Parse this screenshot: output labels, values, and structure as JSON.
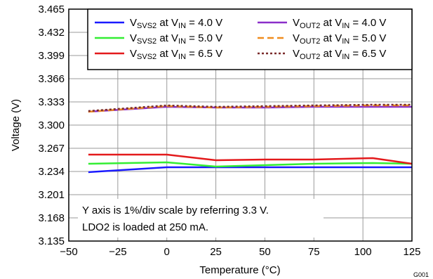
{
  "chart_data": {
    "type": "line",
    "xlabel": "Temperature (°C)",
    "ylabel": "Voltage (V)",
    "xlim": [
      -50,
      125
    ],
    "ylim": [
      3.135,
      3.465
    ],
    "x_ticks": [
      -50,
      -25,
      0,
      25,
      50,
      75,
      100,
      125
    ],
    "x_tick_labels": [
      "−50",
      "−25",
      "0",
      "25",
      "50",
      "75",
      "100",
      "125"
    ],
    "y_ticks": [
      3.135,
      3.168,
      3.201,
      3.234,
      3.267,
      3.3,
      3.333,
      3.366,
      3.399,
      3.432,
      3.465
    ],
    "y_tick_labels": [
      "3.135",
      "3.168",
      "3.201",
      "3.234",
      "3.267",
      "3.300",
      "3.333",
      "3.366",
      "3.399",
      "3.432",
      "3.465"
    ],
    "grid": true,
    "legend_position": "top-right",
    "annotation_lines": [
      "Y axis is 1%/div scale by referring 3.3 V.",
      "LDO2 is loaded at 250 mA."
    ],
    "figure_id": "G001",
    "series": [
      {
        "name_main": "V",
        "name_sub": "SVS2",
        "name_mid": " at V",
        "name_sub2": "IN",
        "name_tail": " = 4.0 V",
        "color": "#1a1aff",
        "dash": "solid",
        "x": [
          -40,
          0,
          25,
          50,
          75,
          105,
          125
        ],
        "values": [
          3.233,
          3.24,
          3.24,
          3.24,
          3.24,
          3.24,
          3.24
        ]
      },
      {
        "name_main": "V",
        "name_sub": "SVS2",
        "name_mid": " at V",
        "name_sub2": "IN",
        "name_tail": " = 5.0 V",
        "color": "#33ee33",
        "dash": "solid",
        "x": [
          -40,
          0,
          25,
          50,
          75,
          105,
          125
        ],
        "values": [
          3.245,
          3.247,
          3.241,
          3.243,
          3.245,
          3.246,
          3.245
        ]
      },
      {
        "name_main": "V",
        "name_sub": "SVS2",
        "name_mid": " at V",
        "name_sub2": "IN",
        "name_tail": " = 6.5 V",
        "color": "#e31a1c",
        "dash": "solid",
        "x": [
          -40,
          0,
          25,
          50,
          75,
          105,
          125
        ],
        "values": [
          3.258,
          3.258,
          3.25,
          3.251,
          3.251,
          3.253,
          3.245
        ]
      },
      {
        "name_main": "V",
        "name_sub": "OUT2",
        "name_mid": " at V",
        "name_sub2": "IN",
        "name_tail": " = 4.0 V",
        "color": "#8b2fc9",
        "dash": "solid",
        "x": [
          -40,
          0,
          25,
          50,
          75,
          105,
          125
        ],
        "values": [
          3.319,
          3.326,
          3.325,
          3.325,
          3.326,
          3.326,
          3.326
        ]
      },
      {
        "name_main": "V",
        "name_sub": "OUT2",
        "name_mid": " at V",
        "name_sub2": "IN",
        "name_tail": " = 5.0 V",
        "color": "#f08c1e",
        "dash": "dashed",
        "x": [
          -40,
          0,
          25,
          50,
          75,
          105,
          125
        ],
        "values": [
          3.319,
          3.327,
          3.325,
          3.326,
          3.327,
          3.328,
          3.328
        ]
      },
      {
        "name_main": "V",
        "name_sub": "OUT2",
        "name_mid": " at V",
        "name_sub2": "IN",
        "name_tail": " = 6.5 V",
        "color": "#7a2b2b",
        "dash": "dotted",
        "x": [
          -40,
          0,
          25,
          50,
          75,
          105,
          125
        ],
        "values": [
          3.32,
          3.328,
          3.326,
          3.327,
          3.328,
          3.329,
          3.329
        ]
      }
    ]
  }
}
